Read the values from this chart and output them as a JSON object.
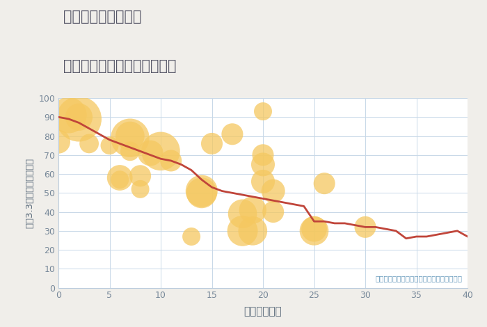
{
  "title_line1": "岐阜県可児市菅刈の",
  "title_line2": "築年数別中古マンション価格",
  "xlabel": "築年数（年）",
  "ylabel": "坪（3.3㎡）単価（万円）",
  "annotation": "円の大きさは、取引のあった物件面積を示す",
  "background_color": "#f0eeea",
  "plot_background": "#ffffff",
  "grid_color": "#c8d8e8",
  "line_color": "#c0453a",
  "scatter_color": "#f5c860",
  "scatter_alpha": 0.75,
  "xlim": [
    0,
    40
  ],
  "ylim": [
    0,
    100
  ],
  "xticks": [
    0,
    5,
    10,
    15,
    20,
    25,
    30,
    35,
    40
  ],
  "yticks": [
    0,
    10,
    20,
    30,
    40,
    50,
    60,
    70,
    80,
    90,
    100
  ],
  "line_x": [
    0,
    1,
    2,
    3,
    4,
    5,
    6,
    7,
    8,
    9,
    10,
    11,
    12,
    13,
    14,
    15,
    16,
    17,
    18,
    19,
    20,
    21,
    22,
    23,
    24,
    25,
    26,
    27,
    28,
    29,
    30,
    31,
    32,
    33,
    34,
    35,
    36,
    37,
    38,
    39,
    40
  ],
  "line_y": [
    90,
    89,
    87,
    84,
    81,
    78,
    76,
    74,
    72,
    70,
    68,
    67,
    65,
    62,
    57,
    53,
    51,
    50,
    49,
    48,
    47,
    46,
    45,
    44,
    43,
    35,
    35,
    34,
    34,
    33,
    32,
    32,
    31,
    30,
    26,
    27,
    27,
    28,
    29,
    30,
    27
  ],
  "scatter_x": [
    0,
    1,
    2,
    2,
    3,
    5,
    6,
    6,
    7,
    7,
    7,
    8,
    8,
    9,
    10,
    11,
    13,
    14,
    14,
    15,
    17,
    18,
    18,
    19,
    19,
    20,
    20,
    20,
    20,
    21,
    21,
    25,
    25,
    26,
    30
  ],
  "scatter_y": [
    77,
    91,
    89,
    90,
    76,
    75,
    58,
    57,
    79,
    80,
    72,
    59,
    52,
    71,
    72,
    67,
    27,
    51,
    50,
    76,
    81,
    39,
    30,
    30,
    41,
    65,
    70,
    56,
    93,
    51,
    40,
    30,
    31,
    55,
    32
  ],
  "scatter_size": [
    600,
    1400,
    2200,
    800,
    400,
    350,
    700,
    350,
    1600,
    900,
    400,
    500,
    350,
    700,
    1600,
    500,
    350,
    1100,
    1000,
    500,
    500,
    900,
    1000,
    900,
    800,
    600,
    500,
    600,
    350,
    600,
    500,
    900,
    700,
    500,
    500
  ]
}
